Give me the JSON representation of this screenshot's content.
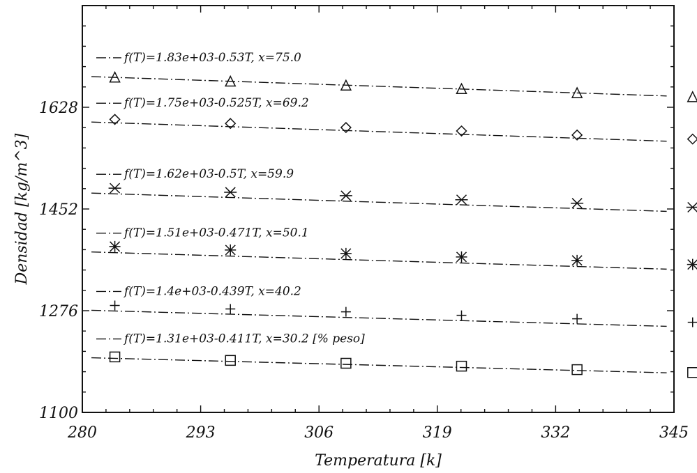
{
  "chart_data": {
    "type": "scatter",
    "xlabel": "Temperatura [k]",
    "ylabel": "Densidad [kg/m^3]",
    "xlim": [
      280,
      345
    ],
    "ylim": [
      1100,
      1804
    ],
    "x_ticks": [
      280,
      293,
      306,
      319,
      332,
      345
    ],
    "y_ticks": [
      1100,
      1276,
      1452,
      1628
    ],
    "x_tick_labels": [
      "280",
      "293",
      "306",
      "319",
      "332",
      "345"
    ],
    "y_tick_labels": [
      "1100",
      "1276",
      "1452",
      "1628"
    ],
    "x": [
      283.5,
      296.5,
      309.5,
      322.5,
      335.5,
      348.5
    ],
    "grid": false,
    "series": [
      {
        "label": "f(T)=1.83e+03-0.53T, x=75.0",
        "marker": "triangle",
        "intercept": 1830,
        "slope": -0.53,
        "values": [
          1679,
          1672,
          1665,
          1659,
          1652,
          1645
        ]
      },
      {
        "label": "f(T)=1.75e+03-0.525T, x=69.2",
        "marker": "diamond",
        "intercept": 1750,
        "slope": -0.525,
        "values": [
          1607,
          1600,
          1593,
          1587,
          1580,
          1573
        ]
      },
      {
        "label": "f(T)=1.62e+03-0.5T, x=59.9",
        "marker": "x",
        "intercept": 1620,
        "slope": -0.5,
        "values": [
          1488,
          1481,
          1475,
          1468,
          1462,
          1455
        ]
      },
      {
        "label": "f(T)=1.51e+03-0.471T, x=50.1",
        "marker": "asterisk",
        "intercept": 1510,
        "slope": -0.471,
        "values": [
          1387,
          1381,
          1375,
          1369,
          1363,
          1356
        ]
      },
      {
        "label": "f(T)=1.4e+03-0.439T, x=40.2",
        "marker": "plus",
        "intercept": 1400,
        "slope": -0.439,
        "values": [
          1285,
          1279,
          1274,
          1268,
          1262,
          1256
        ]
      },
      {
        "label": "f(T)=1.31e+03-0.411T, x=30.2 [% peso]",
        "marker": "square",
        "intercept": 1310,
        "slope": -0.411,
        "values": [
          1196,
          1190,
          1185,
          1180,
          1174,
          1169
        ]
      }
    ]
  }
}
